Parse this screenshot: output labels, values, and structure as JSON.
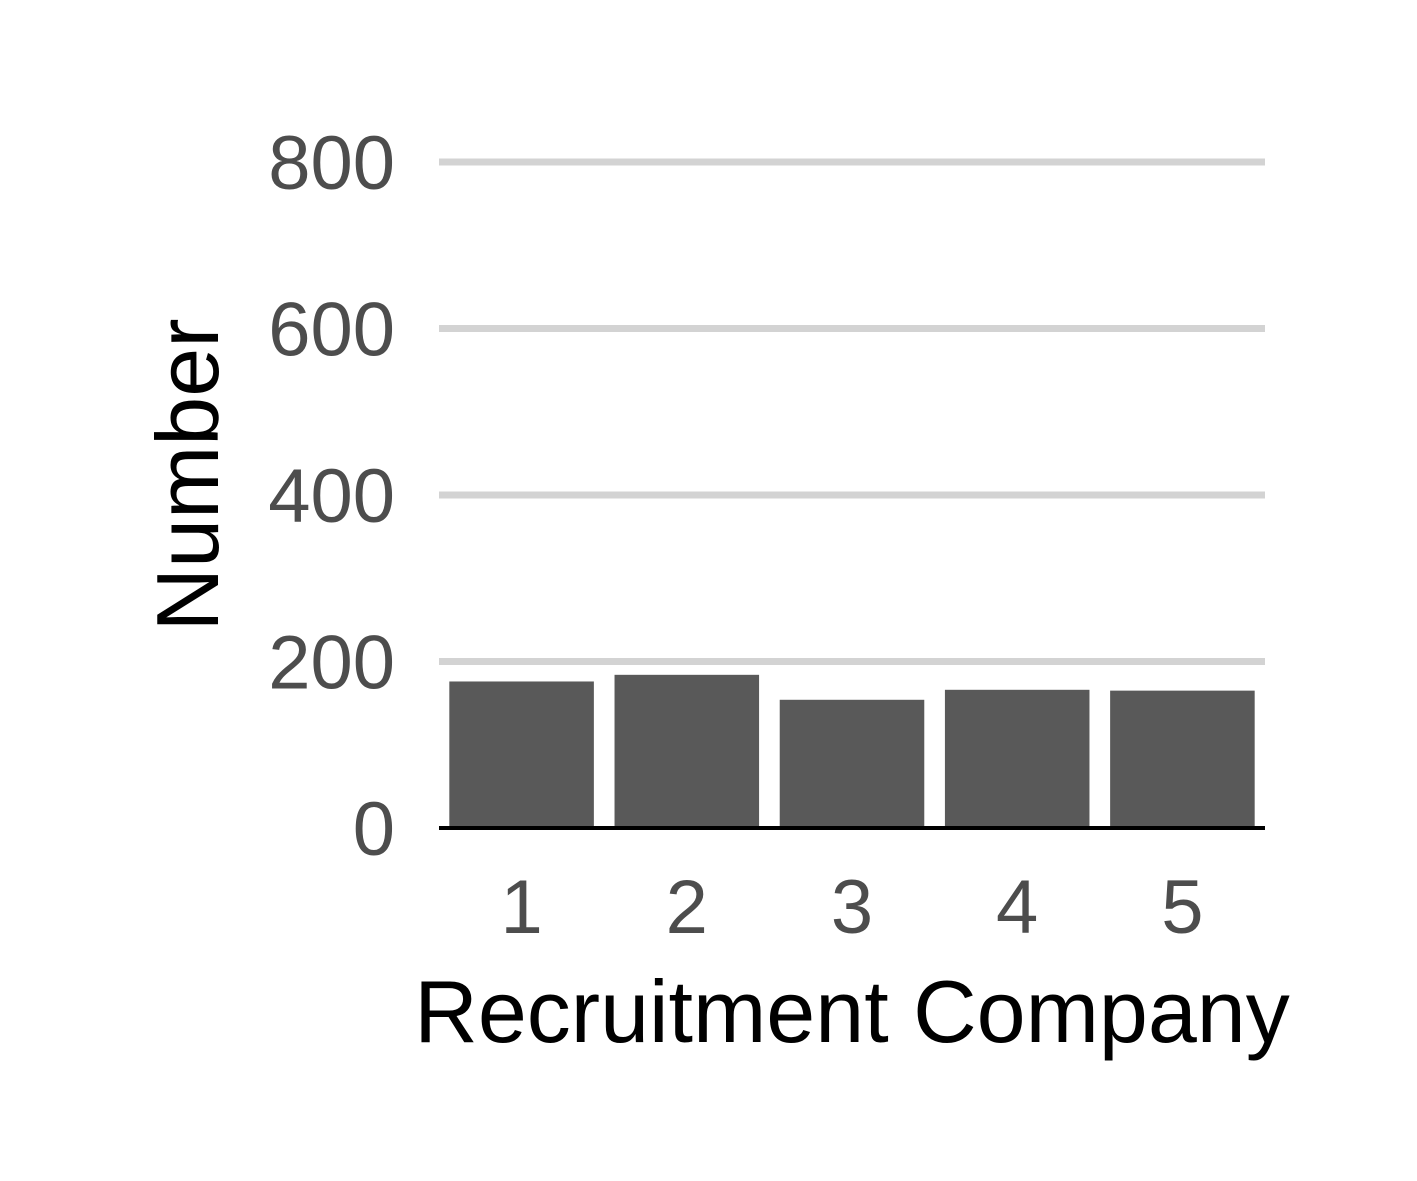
{
  "chart_data": {
    "type": "bar",
    "title": "",
    "xlabel": "Recruitment Company",
    "ylabel": "Number",
    "categories": [
      "1",
      "2",
      "3",
      "4",
      "5"
    ],
    "values": [
      176,
      184,
      154,
      166,
      165
    ],
    "ylim": [
      0,
      800
    ],
    "yticks": [
      "0",
      "200",
      "400",
      "600",
      "800"
    ],
    "grid": "horizontal",
    "legend": "none",
    "bar_color": "#595959",
    "grid_color": "#d3d3d3",
    "axis_line_color": "#000000",
    "tick_label_color": "#4d4d4d"
  }
}
